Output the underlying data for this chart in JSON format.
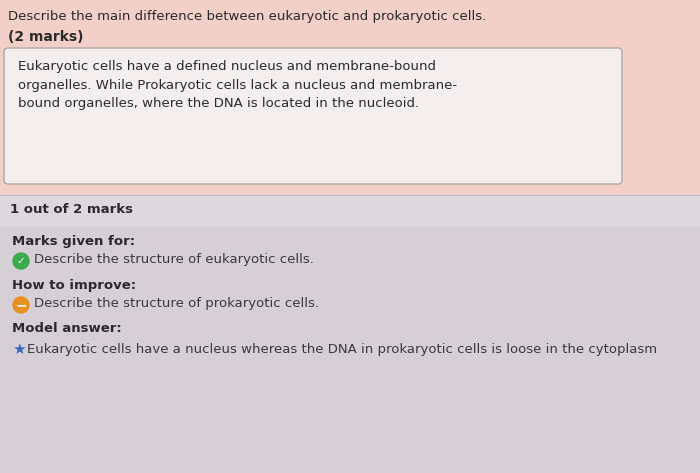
{
  "bg_color": "#f2cfc7",
  "feedback_bg": "#ddd8dd",
  "question_text": "Describe the main difference between eukaryotic and prokaryotic cells.",
  "marks_text": "(2 marks)",
  "student_answer": "Eukaryotic cells have a defined nucleus and membrane-bound\norganelles. While Prokaryotic cells lack a nucleus and membrane-\nbound organelles, where the DNA is located in the nucleoid.",
  "score_text": "1 out of 2 marks",
  "marks_given_label": "Marks given for:",
  "marks_given_item": "Describe the structure of eukaryotic cells.",
  "improve_label": "How to improve:",
  "improve_item": "Describe the structure of prokaryotic cells.",
  "model_label": "Model answer:",
  "model_item": "Eukaryotic cells have a nucleus whereas the DNA in prokaryotic cells is loose in the cytoplasm",
  "answer_box_color": "#f5eeee",
  "answer_box_border": "#b0a8a8",
  "check_color": "#3daa4e",
  "minus_color": "#e89020",
  "star_color": "#3a6abf",
  "text_color": "#2a2a2a",
  "feedback_text_color": "#3a3a3a"
}
